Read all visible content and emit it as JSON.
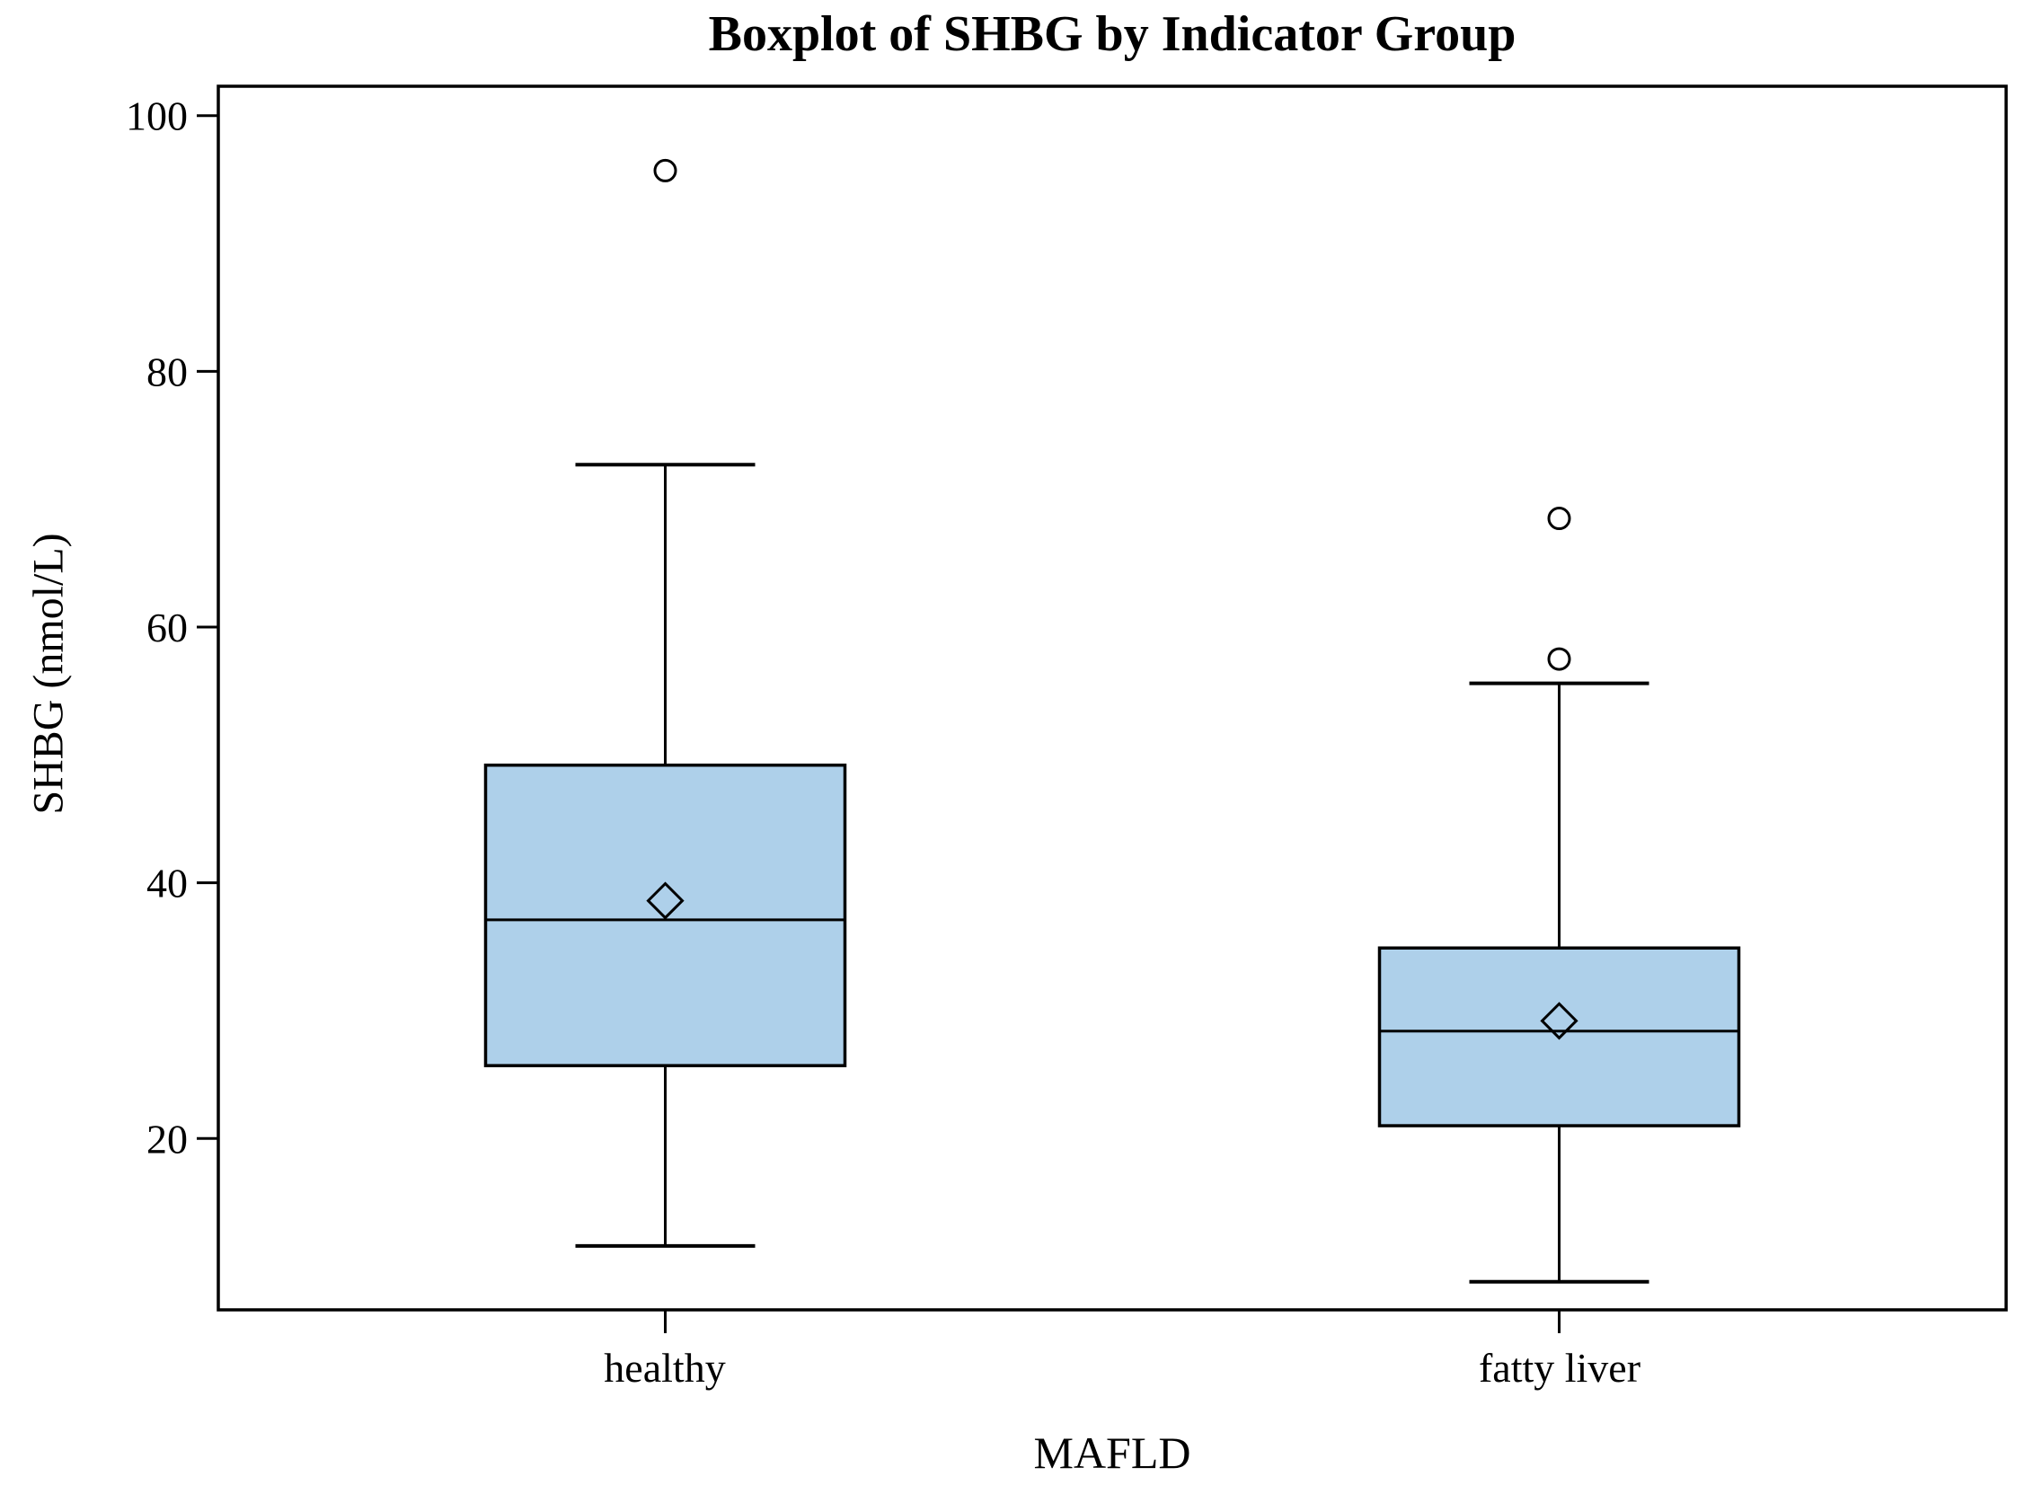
{
  "chart_data": {
    "type": "boxplot",
    "title": "Boxplot of SHBG by Indicator Group",
    "xlabel": "MAFLD",
    "ylabel": "SHBG (nmol/L)",
    "categories": [
      "healthy",
      "fatty liver"
    ],
    "y_ticks": [
      20,
      40,
      60,
      80,
      100
    ],
    "ylim": [
      6.6,
      102.3
    ],
    "grid": false,
    "legend": false,
    "colors": {
      "box_fill": "#AED0EA",
      "line": "#000000",
      "background": "#FFFFFF"
    },
    "series": [
      {
        "name": "healthy",
        "whisker_low": 11.6,
        "q1": 25.7,
        "median": 37.1,
        "q3": 49.2,
        "whisker_high": 72.7,
        "mean": 38.6,
        "outliers": [
          95.7
        ]
      },
      {
        "name": "fatty liver",
        "whisker_low": 8.8,
        "q1": 21.0,
        "median": 28.4,
        "q3": 34.9,
        "whisker_high": 55.6,
        "mean": 29.2,
        "outliers": [
          57.5,
          68.5
        ]
      }
    ]
  }
}
